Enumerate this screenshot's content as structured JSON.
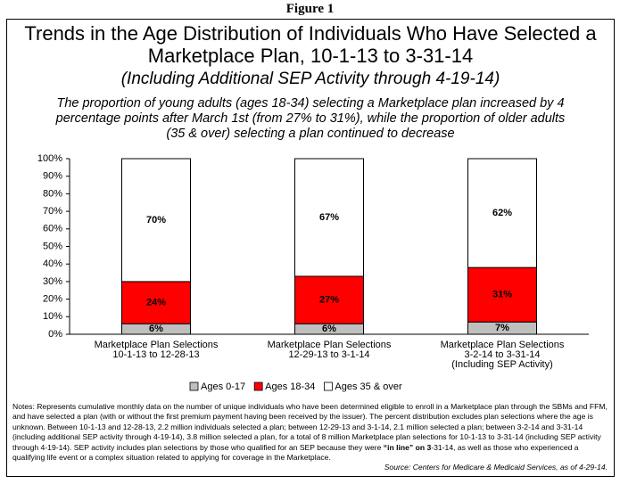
{
  "figure_label": "Figure 1",
  "chart_data": {
    "type": "bar",
    "stacked": true,
    "title": "Trends in the Age Distribution of Individuals Who Have Selected a Marketplace Plan, 10-1-13 to 3-31-14",
    "subtitle": "(Including Additional SEP Activity through 4-19-14)",
    "description": "The proportion of young adults (ages 18-34) selecting a Marketplace plan increased by 4 percentage points after March 1st (from 27% to 31%), while the proportion of older adults (35 & over) selecting a plan continued to decrease",
    "categories": [
      [
        "Marketplace Plan Selections",
        "10-1-13 to 12-28-13"
      ],
      [
        "Marketplace Plan Selections",
        "12-29-13 to 3-1-14"
      ],
      [
        "Marketplace Plan Selections",
        "3-2-14 to 3-31-14",
        "(Including SEP Activity)"
      ]
    ],
    "series": [
      {
        "name": "Ages 0-17",
        "color": "#bfbfbf",
        "values": [
          6,
          6,
          7
        ],
        "value_labels": [
          "6%",
          "6%",
          "7%"
        ]
      },
      {
        "name": "Ages 18-34",
        "color": "#ff0000",
        "values": [
          24,
          27,
          31
        ],
        "value_labels": [
          "24%",
          "27%",
          "31%"
        ]
      },
      {
        "name": "Ages 35 & over",
        "color": "#ffffff",
        "values": [
          70,
          67,
          62
        ],
        "value_labels": [
          "70%",
          "67%",
          "62%"
        ]
      }
    ],
    "ylim": [
      0,
      100
    ],
    "yticks": [
      {
        "value": 0,
        "label": "0%"
      },
      {
        "value": 10,
        "label": "10%"
      },
      {
        "value": 20,
        "label": "20%"
      },
      {
        "value": 30,
        "label": "30%"
      },
      {
        "value": 40,
        "label": "40%"
      },
      {
        "value": 50,
        "label": "50%"
      },
      {
        "value": 60,
        "label": "60%"
      },
      {
        "value": 70,
        "label": "70%"
      },
      {
        "value": 80,
        "label": "80%"
      },
      {
        "value": 90,
        "label": "90%"
      },
      {
        "value": 100,
        "label": "100%"
      }
    ],
    "grid": false,
    "legend": "bottom"
  },
  "notes": [
    "Notes:  Represents cumulative monthly data on the number of unique individuals who have been determined eligible to enroll in a Marketplace plan through the SBMs and FFM, and have selected a plan (with or without the first premium payment having been received by the issuer).  The percent distribution excludes plan selections where the age is unknown.  Between 10-1-13 and 12-28-13, 2.2 million individuals selected a plan; between 12-29-13 and 3-1-14, 2.1 million selected a plan; between 3-2-14 and 3-31-14 (including additional SEP activity through 4-19-14), 3.8 million selected a plan, for a total of 8 million Marketplace plan selections for 10-1-13 to 3-31-14 (including SEP activity through 4-19-14). SEP activity includes plan selections by those who qualified for an SEP because they were ",
    "“in line” on 3",
    "-31-14, as well as those who experienced a qualifying life event or a complex situation related to applying for coverage in the Marketplace."
  ],
  "source": "Source:  Centers for Medicare & Medicaid Services, as of 4-29-14."
}
